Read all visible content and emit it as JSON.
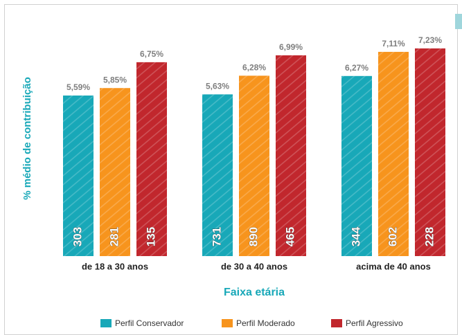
{
  "chart_data": {
    "type": "bar",
    "y_label": "% médio de contribuição",
    "x_label": "Faixa etária",
    "categories": [
      "de 18 a 30 anos",
      "de 30 a 40 anos",
      "acima de 40 anos"
    ],
    "ylim": [
      0,
      8
    ],
    "series": [
      {
        "name": "Perfil Conservador",
        "color": "#18a8b8",
        "values": [
          5.59,
          5.63,
          6.27
        ],
        "value_labels": [
          "5,59%",
          "5,63%",
          "6,27%"
        ],
        "counts": [
          303,
          731,
          344
        ]
      },
      {
        "name": "Perfil Moderado",
        "color": "#f7941d",
        "values": [
          5.85,
          6.28,
          7.11
        ],
        "value_labels": [
          "5,85%",
          "6,28%",
          "7,11%"
        ],
        "counts": [
          281,
          890,
          602
        ]
      },
      {
        "name": "Perfil Agressivo",
        "color": "#c1272d",
        "values": [
          6.75,
          6.99,
          7.23
        ],
        "value_labels": [
          "6,75%",
          "6,99%",
          "7,23%"
        ],
        "counts": [
          135,
          465,
          228
        ]
      }
    ]
  }
}
